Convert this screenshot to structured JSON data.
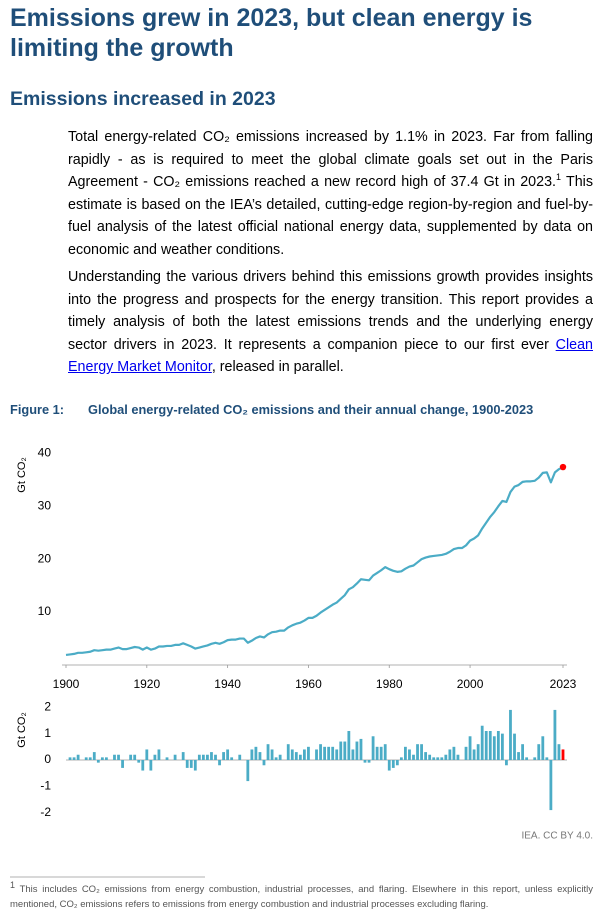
{
  "header": {
    "title": "Emissions grew in 2023, but clean energy is limiting the growth"
  },
  "section": {
    "heading": "Emissions increased in 2023"
  },
  "paragraphs": [
    {
      "text": "Total energy-related CO₂ emissions increased by 1.1% in 2023. Far from falling rapidly - as is required to meet the global climate goals set out in the Paris Agreement - CO₂ emissions reached a new record high of 37.4 Gt in 2023.",
      "footnote_ref": "1",
      "text_after": " This estimate is based on the IEA’s detailed, cutting-edge region-by-region and fuel-by-fuel analysis of the latest official national energy data, supplemented by data on economic and weather conditions."
    },
    {
      "text": "Understanding the various drivers behind this emissions growth provides insights into the progress and prospects for the energy transition. This report provides a timely analysis of both the latest emissions trends and the underlying energy sector drivers in 2023. It represents a companion piece to our first ever ",
      "link": "Clean Energy Market Monitor",
      "text_after": ", released in parallel."
    }
  ],
  "figure": {
    "label": "Figure 1:",
    "caption": "Global energy-related CO₂ emissions and their annual change, 1900-2023",
    "source": "IEA. CC BY 4.0."
  },
  "chart_data": [
    {
      "type": "line",
      "ylabel": "Gt CO₂",
      "color": "#4bacc6",
      "highlight_color": "#ff0000",
      "xlim": [
        1900,
        2023
      ],
      "xticks": [
        1900,
        1920,
        1940,
        1960,
        1980,
        2000,
        2023
      ],
      "ylim": [
        0,
        41
      ],
      "yticks": [
        10,
        20,
        30,
        40
      ],
      "x": [
        1900,
        1901,
        1902,
        1903,
        1904,
        1905,
        1906,
        1907,
        1908,
        1909,
        1910,
        1911,
        1912,
        1913,
        1914,
        1915,
        1916,
        1917,
        1918,
        1919,
        1920,
        1921,
        1922,
        1923,
        1924,
        1925,
        1926,
        1927,
        1928,
        1929,
        1930,
        1931,
        1932,
        1933,
        1934,
        1935,
        1936,
        1937,
        1938,
        1939,
        1940,
        1941,
        1942,
        1943,
        1944,
        1945,
        1946,
        1947,
        1948,
        1949,
        1950,
        1951,
        1952,
        1953,
        1954,
        1955,
        1956,
        1957,
        1958,
        1959,
        1960,
        1961,
        1962,
        1963,
        1964,
        1965,
        1966,
        1967,
        1968,
        1969,
        1970,
        1971,
        1972,
        1973,
        1974,
        1975,
        1976,
        1977,
        1978,
        1979,
        1980,
        1981,
        1982,
        1983,
        1984,
        1985,
        1986,
        1987,
        1988,
        1989,
        1990,
        1991,
        1992,
        1993,
        1994,
        1995,
        1996,
        1997,
        1998,
        1999,
        2000,
        2001,
        2002,
        2003,
        2004,
        2005,
        2006,
        2007,
        2008,
        2009,
        2010,
        2011,
        2012,
        2013,
        2014,
        2015,
        2016,
        2017,
        2018,
        2019,
        2020,
        2021,
        2022,
        2023
      ],
      "values": [
        1.9,
        2.0,
        2.1,
        2.3,
        2.3,
        2.4,
        2.5,
        2.8,
        2.7,
        2.8,
        2.9,
        2.9,
        3.1,
        3.3,
        3.0,
        3.0,
        3.2,
        3.4,
        3.3,
        2.9,
        3.3,
        2.9,
        3.1,
        3.5,
        3.5,
        3.6,
        3.6,
        3.8,
        3.8,
        4.1,
        3.8,
        3.5,
        3.1,
        3.3,
        3.5,
        3.7,
        4.0,
        4.2,
        4.0,
        4.3,
        4.7,
        4.8,
        4.8,
        5.0,
        5.0,
        4.2,
        4.6,
        5.1,
        5.4,
        5.2,
        5.8,
        6.2,
        6.3,
        6.5,
        6.5,
        7.1,
        7.5,
        7.8,
        8.0,
        8.4,
        8.9,
        8.9,
        9.3,
        9.9,
        10.4,
        10.9,
        11.4,
        11.8,
        12.5,
        13.2,
        14.3,
        14.7,
        15.4,
        16.2,
        16.1,
        16.0,
        16.9,
        17.4,
        17.9,
        18.5,
        18.1,
        17.8,
        17.6,
        17.7,
        18.2,
        18.6,
        18.8,
        19.4,
        20.0,
        20.3,
        20.5,
        20.6,
        20.7,
        20.8,
        21.0,
        21.4,
        21.9,
        22.1,
        22.1,
        22.6,
        23.5,
        23.9,
        24.5,
        25.8,
        26.9,
        28.0,
        28.9,
        30.0,
        31.0,
        30.8,
        32.7,
        33.7,
        34.0,
        34.6,
        34.7,
        34.7,
        34.8,
        35.4,
        36.3,
        36.4,
        34.5,
        36.4,
        37.0,
        37.4
      ]
    },
    {
      "type": "bar",
      "ylabel": "Gt CO₂",
      "color": "#4bacc6",
      "highlight_color": "#ff0000",
      "xlim": [
        1900,
        2023
      ],
      "ylim": [
        -2.2,
        2.2
      ],
      "yticks": [
        2,
        1,
        0,
        -1,
        -2
      ],
      "x": [
        1901,
        1902,
        1903,
        1904,
        1905,
        1906,
        1907,
        1908,
        1909,
        1910,
        1911,
        1912,
        1913,
        1914,
        1915,
        1916,
        1917,
        1918,
        1919,
        1920,
        1921,
        1922,
        1923,
        1924,
        1925,
        1926,
        1927,
        1928,
        1929,
        1930,
        1931,
        1932,
        1933,
        1934,
        1935,
        1936,
        1937,
        1938,
        1939,
        1940,
        1941,
        1942,
        1943,
        1944,
        1945,
        1946,
        1947,
        1948,
        1949,
        1950,
        1951,
        1952,
        1953,
        1954,
        1955,
        1956,
        1957,
        1958,
        1959,
        1960,
        1961,
        1962,
        1963,
        1964,
        1965,
        1966,
        1967,
        1968,
        1969,
        1970,
        1971,
        1972,
        1973,
        1974,
        1975,
        1976,
        1977,
        1978,
        1979,
        1980,
        1981,
        1982,
        1983,
        1984,
        1985,
        1986,
        1987,
        1988,
        1989,
        1990,
        1991,
        1992,
        1993,
        1994,
        1995,
        1996,
        1997,
        1998,
        1999,
        2000,
        2001,
        2002,
        2003,
        2004,
        2005,
        2006,
        2007,
        2008,
        2009,
        2010,
        2011,
        2012,
        2013,
        2014,
        2015,
        2016,
        2017,
        2018,
        2019,
        2020,
        2021,
        2022,
        2023
      ],
      "values": [
        0.1,
        0.1,
        0.2,
        0,
        0.1,
        0.1,
        0.3,
        -0.1,
        0.1,
        0.1,
        0,
        0.2,
        0.2,
        -0.3,
        0,
        0.2,
        0.2,
        -0.1,
        -0.4,
        0.4,
        -0.4,
        0.2,
        0.4,
        0,
        0.1,
        0,
        0.2,
        0,
        0.3,
        -0.3,
        -0.3,
        -0.4,
        0.2,
        0.2,
        0.2,
        0.3,
        0.2,
        -0.2,
        0.3,
        0.4,
        0.1,
        0,
        0.2,
        0,
        -0.8,
        0.4,
        0.5,
        0.3,
        -0.2,
        0.6,
        0.4,
        0.1,
        0.2,
        0,
        0.6,
        0.4,
        0.3,
        0.2,
        0.4,
        0.5,
        0,
        0.4,
        0.6,
        0.5,
        0.5,
        0.5,
        0.4,
        0.7,
        0.7,
        1.1,
        0.4,
        0.7,
        0.8,
        -0.1,
        -0.1,
        0.9,
        0.5,
        0.5,
        0.6,
        -0.4,
        -0.3,
        -0.2,
        0.1,
        0.5,
        0.4,
        0.2,
        0.6,
        0.6,
        0.3,
        0.2,
        0.1,
        0.1,
        0.1,
        0.2,
        0.4,
        0.5,
        0.2,
        0,
        0.5,
        0.9,
        0.4,
        0.6,
        1.3,
        1.1,
        1.1,
        0.9,
        1.1,
        1.0,
        -0.2,
        1.9,
        1.0,
        0.3,
        0.6,
        0.1,
        0,
        0.1,
        0.6,
        0.9,
        0.1,
        -1.9,
        1.9,
        0.6,
        0.4
      ]
    }
  ],
  "footnote": {
    "marker": "1",
    "text": "This includes CO₂ emissions from energy combustion, industrial processes, and flaring. Elsewhere in this report, unless explicitly mentioned, CO₂ emissions refers to emissions from energy combustion and industrial processes excluding flaring."
  }
}
